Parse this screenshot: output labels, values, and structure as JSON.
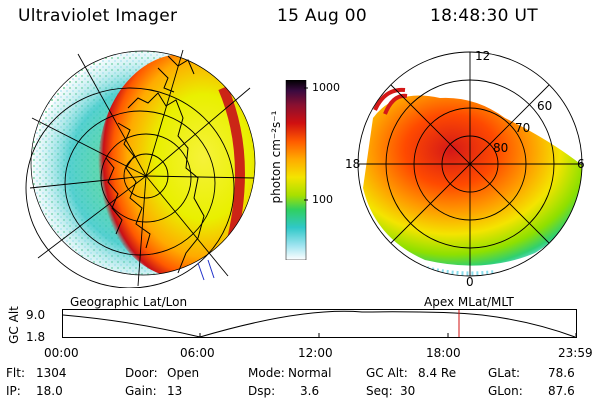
{
  "header": {
    "title": "Ultraviolet Imager",
    "date": "15 Aug 00",
    "time": "18:48:30 UT"
  },
  "colorbar": {
    "unit_label": "photon cm⁻²s⁻¹",
    "ticks": [
      "1000",
      "100"
    ]
  },
  "polar_labels": {
    "mlt_top": "12",
    "mlt_left": "18",
    "mlt_right": "6",
    "mlt_bottom": "0",
    "lat_60": "60",
    "lat_70": "70",
    "lat_80": "80"
  },
  "captions": {
    "left": "Geographic Lat/Lon",
    "right": "Apex MLat/MLT"
  },
  "altitude_plot": {
    "ylabel": "GC Alt",
    "y_top": "9.0",
    "y_bottom": "1.8",
    "x_ticks": [
      "00:00",
      "06:00",
      "12:00",
      "18:00",
      "23:59"
    ]
  },
  "status": {
    "flt_label": "Flt:",
    "flt_value": "1304",
    "ip_label": "IP:",
    "ip_value": "18.0",
    "door_label": "Door:",
    "door_value": "Open",
    "gain_label": "Gain:",
    "gain_value": "13",
    "mode_label": "Mode:",
    "mode_value": "Normal",
    "dsp_label": "Dsp:",
    "dsp_value": "3.6",
    "gcalt_label": "GC Alt:",
    "gcalt_value": "8.4 Re",
    "seq_label": "Seq:",
    "seq_value": "30",
    "glat_label": "GLat:",
    "glat_value": "78.6",
    "glon_label": "GLon:",
    "glon_value": "87.6"
  },
  "colors": {
    "aurora_peak": "#c81018",
    "aurora_high": "#ff7a00",
    "aurora_mid": "#f2e000",
    "aurora_low": "#2fd66a",
    "aurora_faint": "#40c8e0",
    "marker": "#d01010"
  }
}
